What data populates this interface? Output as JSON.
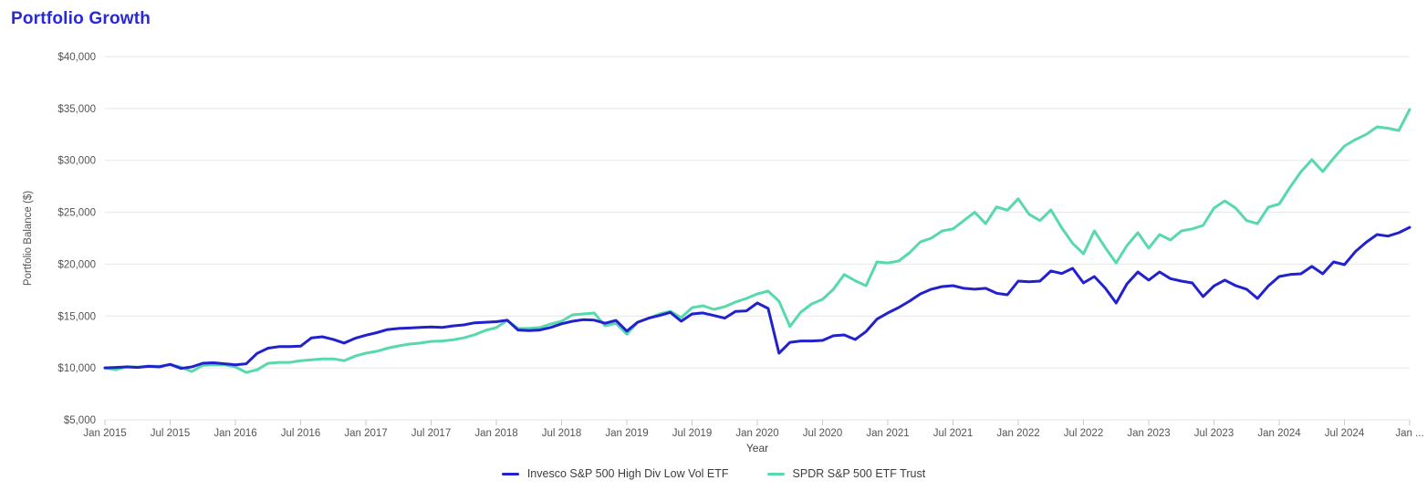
{
  "chart_data": {
    "type": "line",
    "title": "Portfolio Growth",
    "xlabel": "Year",
    "ylabel": "Portfolio Balance ($)",
    "x_start": "2015-01",
    "x_end": "2025-01",
    "x_interval": "monthly",
    "ylim": [
      5000,
      40000
    ],
    "grid": "horizontal",
    "legend_position": "bottom",
    "colors": {
      "title": "#2929d8",
      "gridline": "#e6e6e6",
      "tick_mark": "#c8c8c8",
      "axis_text": "#545454",
      "series_invesco": "#2121ce",
      "series_spdr": "#57d9ab"
    },
    "y_ticks": [
      5000,
      10000,
      15000,
      20000,
      25000,
      30000,
      35000,
      40000
    ],
    "y_tick_labels": [
      "$5,000",
      "$10,000",
      "$15,000",
      "$20,000",
      "$25,000",
      "$30,000",
      "$35,000",
      "$40,000"
    ],
    "x_tick_every": 6,
    "x_tick_labels": [
      "Jan 2015",
      "Jul 2015",
      "Jan 2016",
      "Jul 2016",
      "Jan 2017",
      "Jul 2017",
      "Jan 2018",
      "Jul 2018",
      "Jan 2019",
      "Jul 2019",
      "Jan 2020",
      "Jul 2020",
      "Jan 2021",
      "Jul 2021",
      "Jan 2022",
      "Jul 2022",
      "Jan 2023",
      "Jul 2023",
      "Jan 2024",
      "Jul 2024",
      "Jan ..."
    ],
    "series": [
      {
        "name": "Invesco S&P 500 High Div Low Vol ETF",
        "color": "#2121ce",
        "values": [
          10000,
          10050,
          10100,
          10050,
          10150,
          10100,
          10350,
          9950,
          10100,
          10450,
          10500,
          10400,
          10300,
          10400,
          11400,
          11900,
          12050,
          12050,
          12100,
          12900,
          13000,
          12750,
          12400,
          12850,
          13150,
          13400,
          13700,
          13800,
          13850,
          13900,
          13950,
          13900,
          14050,
          14150,
          14350,
          14400,
          14450,
          14600,
          13650,
          13600,
          13650,
          13900,
          14250,
          14500,
          14650,
          14600,
          14300,
          14580,
          13550,
          14400,
          14800,
          15050,
          15350,
          14500,
          15200,
          15300,
          15050,
          14800,
          15450,
          15500,
          16260,
          15730,
          11420,
          12470,
          12600,
          12600,
          12650,
          13100,
          13180,
          12740,
          13500,
          14700,
          15300,
          15820,
          16430,
          17140,
          17580,
          17840,
          17930,
          17670,
          17580,
          17670,
          17200,
          17050,
          18370,
          18300,
          18370,
          19340,
          19100,
          19600,
          18190,
          18810,
          17700,
          16260,
          18100,
          19250,
          18460,
          19250,
          18600,
          18370,
          18190,
          16870,
          17900,
          18460,
          17930,
          17580,
          16700,
          17900,
          18810,
          19000,
          19070,
          19780,
          19070,
          20210,
          19950,
          21200,
          22100,
          22850,
          22700,
          23030,
          23550
        ]
      },
      {
        "name": "SPDR S&P 500 ETF Trust",
        "color": "#57d9ab",
        "values": [
          10000,
          9820,
          10120,
          10080,
          10180,
          10150,
          10300,
          10080,
          9650,
          10260,
          10300,
          10310,
          10090,
          9560,
          9820,
          10440,
          10530,
          10530,
          10700,
          10790,
          10870,
          10870,
          10700,
          11140,
          11420,
          11600,
          11900,
          12120,
          12300,
          12400,
          12550,
          12600,
          12700,
          12900,
          13200,
          13620,
          13890,
          14580,
          13800,
          13800,
          13890,
          14230,
          14500,
          15110,
          15200,
          15290,
          14060,
          14300,
          13250,
          14410,
          14760,
          15200,
          15460,
          14850,
          15810,
          15990,
          15640,
          15900,
          16350,
          16700,
          17140,
          17400,
          16430,
          14000,
          15380,
          16170,
          16610,
          17580,
          19000,
          18400,
          17930,
          20210,
          20120,
          20300,
          21090,
          22150,
          22500,
          23200,
          23400,
          24200,
          25000,
          23900,
          25520,
          25200,
          26300,
          24800,
          24200,
          25230,
          23500,
          22000,
          21000,
          23200,
          21600,
          20120,
          21800,
          23030,
          21540,
          22850,
          22320,
          23200,
          23400,
          23730,
          25400,
          26100,
          25400,
          24200,
          23900,
          25490,
          25800,
          27420,
          28900,
          30060,
          28920,
          30200,
          31380,
          32000,
          32500,
          33230,
          33100,
          32880,
          34900
        ]
      }
    ]
  }
}
